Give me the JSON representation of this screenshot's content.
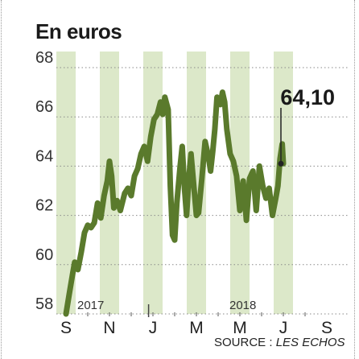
{
  "chart_data": {
    "type": "line",
    "title": "En euros",
    "source_label": "SOURCE : ",
    "source_name": "LES ECHOS",
    "y_ticks": [
      "68",
      "66",
      "64",
      "62",
      "60",
      "58"
    ],
    "ylim": [
      58,
      68
    ],
    "month_labels": [
      "S",
      "N",
      "J",
      "M",
      "M",
      "J",
      "S"
    ],
    "year_labels": [
      {
        "label": "2017",
        "month_index": 1
      },
      {
        "label": "2018",
        "month_index": 8
      }
    ],
    "annotation": {
      "label": "64,10",
      "value": 64.1
    },
    "series_color": "#5a7a2c",
    "band_color": "#dce8c9",
    "series": [
      {
        "values": [
          [
            0.0,
            58.0
          ],
          [
            0.15,
            58.8
          ],
          [
            0.3,
            59.6
          ],
          [
            0.4,
            60.1
          ],
          [
            0.55,
            59.8
          ],
          [
            0.7,
            60.5
          ],
          [
            0.85,
            61.3
          ],
          [
            1.0,
            61.6
          ],
          [
            1.15,
            61.5
          ],
          [
            1.3,
            61.7
          ],
          [
            1.45,
            62.5
          ],
          [
            1.6,
            61.9
          ],
          [
            1.75,
            62.8
          ],
          [
            1.9,
            63.4
          ],
          [
            2.0,
            64.2
          ],
          [
            2.1,
            63.6
          ],
          [
            2.2,
            62.3
          ],
          [
            2.35,
            62.6
          ],
          [
            2.5,
            62.2
          ],
          [
            2.7,
            62.9
          ],
          [
            2.85,
            63.1
          ],
          [
            3.0,
            62.8
          ],
          [
            3.15,
            63.6
          ],
          [
            3.3,
            63.9
          ],
          [
            3.45,
            64.5
          ],
          [
            3.6,
            64.8
          ],
          [
            3.75,
            64.2
          ],
          [
            3.9,
            65.2
          ],
          [
            4.05,
            65.9
          ],
          [
            4.2,
            66.1
          ],
          [
            4.35,
            66.6
          ],
          [
            4.45,
            66.1
          ],
          [
            4.55,
            66.8
          ],
          [
            4.7,
            66.3
          ],
          [
            4.8,
            63.2
          ],
          [
            4.9,
            61.2
          ],
          [
            5.0,
            61.0
          ],
          [
            5.1,
            62.5
          ],
          [
            5.25,
            64.0
          ],
          [
            5.35,
            64.8
          ],
          [
            5.45,
            63.1
          ],
          [
            5.55,
            62.0
          ],
          [
            5.65,
            63.5
          ],
          [
            5.75,
            64.5
          ],
          [
            5.9,
            63.0
          ],
          [
            6.0,
            62.0
          ],
          [
            6.1,
            62.1
          ],
          [
            6.25,
            63.5
          ],
          [
            6.4,
            65.0
          ],
          [
            6.55,
            64.4
          ],
          [
            6.65,
            63.8
          ],
          [
            6.75,
            64.6
          ],
          [
            6.85,
            65.5
          ],
          [
            6.95,
            66.8
          ],
          [
            7.1,
            66.5
          ],
          [
            7.2,
            67.0
          ],
          [
            7.3,
            66.6
          ],
          [
            7.4,
            65.5
          ],
          [
            7.55,
            64.5
          ],
          [
            7.7,
            64.2
          ],
          [
            7.85,
            63.6
          ],
          [
            8.0,
            62.2
          ],
          [
            8.15,
            63.4
          ],
          [
            8.3,
            61.8
          ],
          [
            8.45,
            63.5
          ],
          [
            8.6,
            63.8
          ],
          [
            8.75,
            62.2
          ],
          [
            8.9,
            64.0
          ],
          [
            9.05,
            63.2
          ],
          [
            9.2,
            62.7
          ],
          [
            9.35,
            63.1
          ],
          [
            9.5,
            62.0
          ],
          [
            9.65,
            62.7
          ],
          [
            9.75,
            63.2
          ],
          [
            9.85,
            64.3
          ],
          [
            9.95,
            64.9
          ],
          [
            10.0,
            64.1
          ]
        ]
      }
    ]
  }
}
